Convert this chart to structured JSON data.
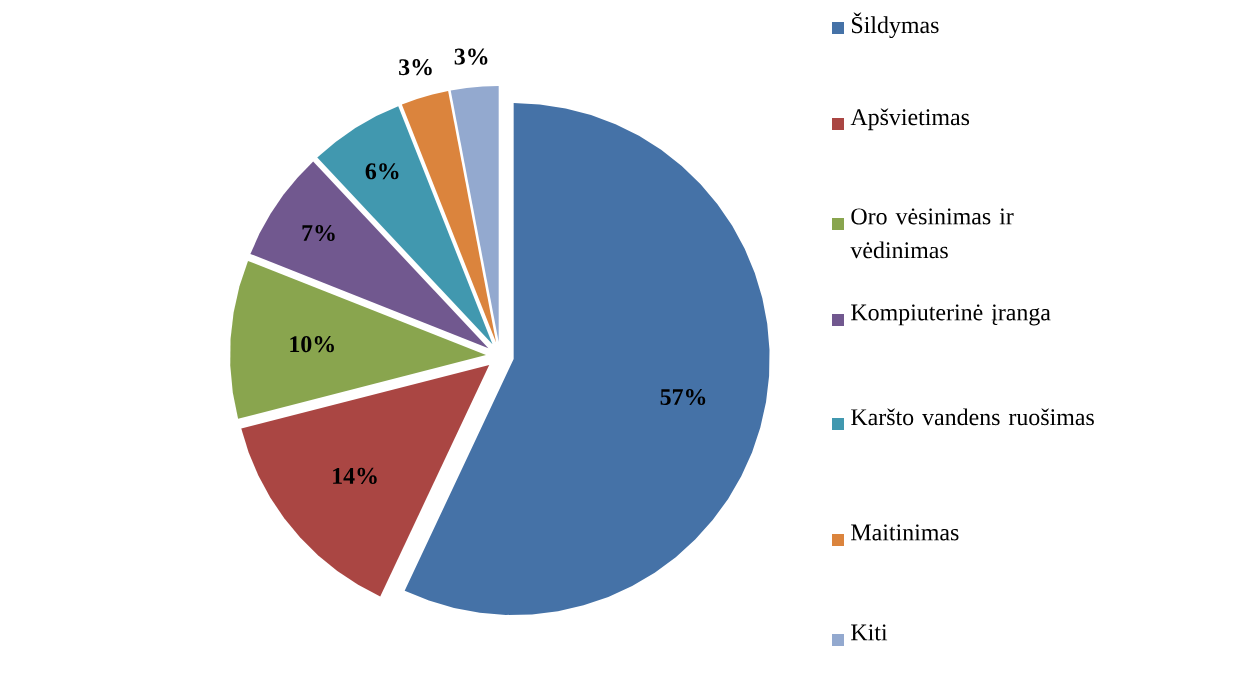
{
  "chart_data": {
    "type": "pie",
    "categories": [
      "Šildymas",
      "Apšvietimas",
      "Oro vėsinimas ir vėdinimas",
      "Kompiuterinė įranga",
      "Karšto vandens ruošimas",
      "Maitinimas",
      "Kiti"
    ],
    "values": [
      57,
      14,
      10,
      7,
      6,
      3,
      3
    ],
    "colors": [
      "#4572a7",
      "#aa4643",
      "#89a54e",
      "#71588f",
      "#4198af",
      "#db843d",
      "#93a9cf"
    ],
    "value_labels": [
      "57%",
      "14%",
      "10%",
      "7%",
      "6%",
      "3%",
      "3%"
    ],
    "legend": "right"
  }
}
